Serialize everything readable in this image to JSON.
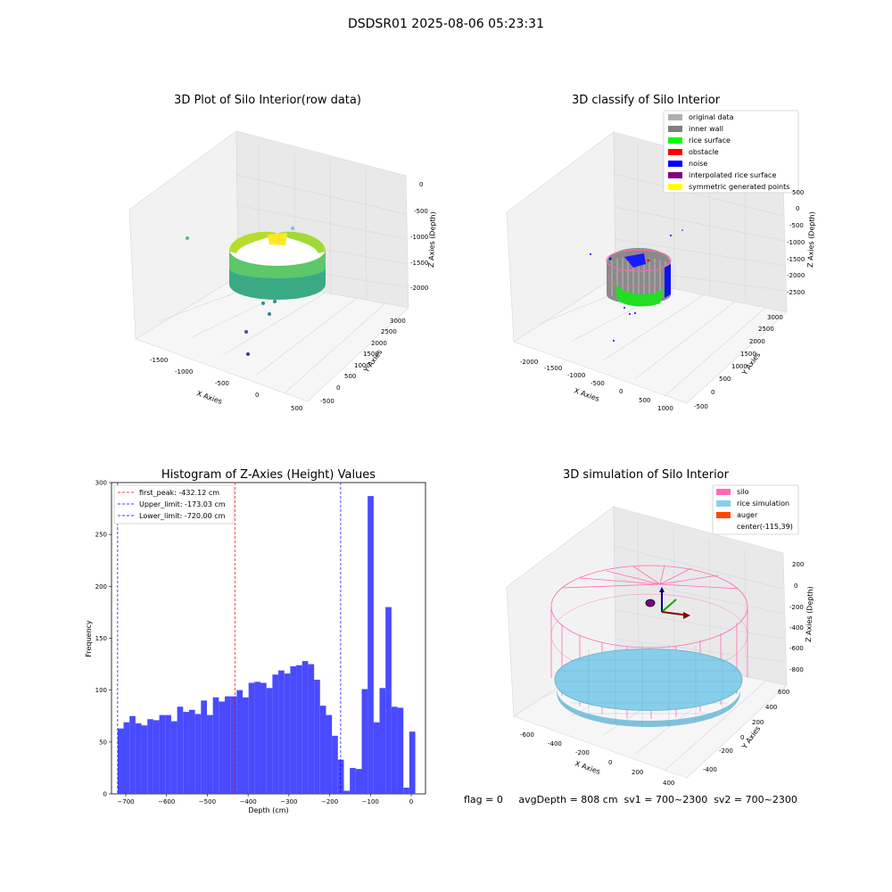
{
  "suptitle": "DSDSR01 2025-08-06 05:23:31",
  "panels": {
    "raw": {
      "title": "3D Plot of Silo Interior(row data)",
      "xlabel": "X Axies",
      "ylabel": "Y Axies",
      "zlabel": "Z Axies (Depth)",
      "xticks": [
        "-1500",
        "-1000",
        "-500",
        "0",
        "500"
      ],
      "yticks": [
        "-500",
        "0",
        "500",
        "1000",
        "1500",
        "2000",
        "2500",
        "3000"
      ],
      "zticks": [
        "0",
        "-500",
        "-1000",
        "-1500",
        "-2000"
      ]
    },
    "classify": {
      "title": "3D classify of Silo Interior",
      "xlabel": "X Axies",
      "ylabel": "Y Axies",
      "zlabel": "Z Axies (Depth)",
      "xticks": [
        "-2000",
        "-1500",
        "-1000",
        "-500",
        "0",
        "500",
        "1000"
      ],
      "yticks": [
        "-500",
        "0",
        "500",
        "1000",
        "1500",
        "2000",
        "2500",
        "3000"
      ],
      "zticks": [
        "500",
        "0",
        "-500",
        "-1000",
        "-1500",
        "-2000",
        "-2500"
      ],
      "legend": [
        {
          "label": "original data",
          "color": "#b0b0b0"
        },
        {
          "label": "inner wall",
          "color": "#808080"
        },
        {
          "label": "rice surface",
          "color": "#00ff00"
        },
        {
          "label": "obstacle",
          "color": "#ff0000"
        },
        {
          "label": "noise",
          "color": "#0000ff"
        },
        {
          "label": "interpolated rice surface",
          "color": "#800080"
        },
        {
          "label": "symmetric generated points",
          "color": "#ffff00"
        }
      ]
    },
    "sim": {
      "title": "3D simulation of Silo Interior",
      "xlabel": "X Axies",
      "ylabel": "Y Axies",
      "zlabel": "Z Axies (Depth)",
      "xticks": [
        "-600",
        "-400",
        "-200",
        "0",
        "200",
        "400"
      ],
      "yticks": [
        "-400",
        "-200",
        "0",
        "200",
        "400",
        "600"
      ],
      "zticks": [
        "200",
        "0",
        "-200",
        "-400",
        "-600",
        "-800"
      ],
      "legend": [
        {
          "label": "silo",
          "color": "#ff69b4"
        },
        {
          "label": "rice simulation",
          "color": "#87ceeb"
        },
        {
          "label": "auger",
          "color": "#ff4500"
        },
        {
          "label": "center(-115,39)",
          "color": ""
        }
      ]
    },
    "footer": "flag = 0     avgDepth = 808 cm  sv1 = 700~2300  sv2 = 700~2300"
  },
  "chart_data": {
    "type": "bar",
    "title": "Histogram of Z-Axies (Height) Values",
    "xlabel": "Depth (cm)",
    "ylabel": "Frequency",
    "xlim": [
      -735,
      35
    ],
    "ylim": [
      0,
      300
    ],
    "xticks": [
      -700,
      -600,
      -500,
      -400,
      -300,
      -200,
      -100,
      0
    ],
    "yticks": [
      0,
      50,
      100,
      150,
      200,
      250,
      300
    ],
    "bin_start": -720,
    "bin_width": 14.6,
    "values": [
      63,
      69,
      75,
      68,
      66,
      72,
      71,
      76,
      76,
      70,
      84,
      79,
      81,
      77,
      90,
      76,
      93,
      89,
      94,
      94,
      100,
      93,
      107,
      108,
      107,
      102,
      115,
      119,
      116,
      123,
      124,
      128,
      125,
      110,
      85,
      76,
      56,
      33,
      3,
      25,
      24,
      101,
      287,
      69,
      102,
      180,
      84,
      83,
      6,
      60
    ],
    "bar_color": "#4a4aff",
    "lines": [
      {
        "label": "first_peak: -432.12 cm",
        "x": -432.12,
        "color": "#ff0000"
      },
      {
        "label": "Upper_limit: -173.03 cm",
        "x": -173.03,
        "color": "#0000ff"
      },
      {
        "label": "Lower_limit: -720.00 cm",
        "x": -720.0,
        "color": "#0000ff"
      }
    ],
    "legend_position": "upper-left"
  }
}
